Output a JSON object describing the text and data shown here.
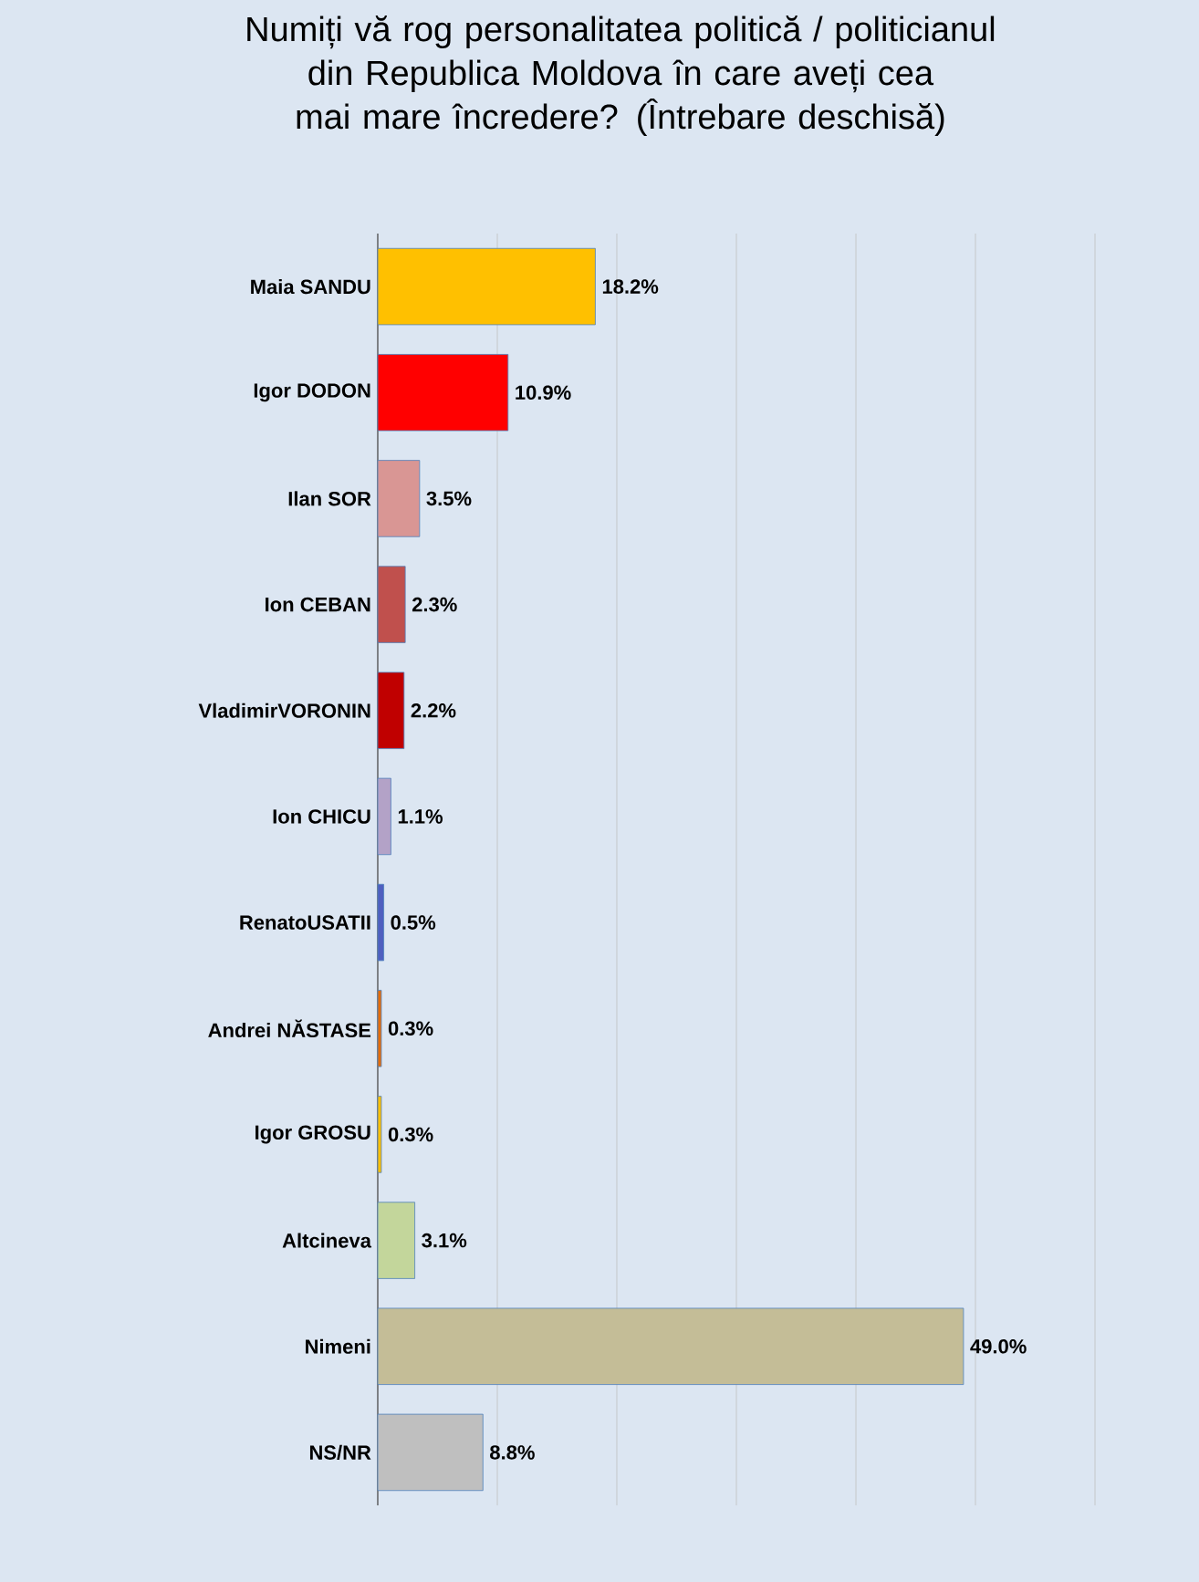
{
  "chart_data": {
    "type": "bar",
    "orientation": "horizontal",
    "title": "Numiți vă rog personalitatea politică / politicianul din Republica Moldova în care aveți cea mai mare încredere? (Întrebare deschisă)",
    "categories": [
      "Maia SANDU",
      "Igor DODON",
      "Ilan  SOR",
      "Ion CEBAN",
      "VladimirVORONIN",
      "Ion  CHICU",
      "RenatoUSATII",
      "Andrei NĂSTASE",
      "Igor GROSU",
      "Altcineva",
      "Nimeni",
      "NS/NR"
    ],
    "values": [
      18.2,
      10.9,
      3.5,
      2.3,
      2.2,
      1.1,
      0.5,
      0.3,
      0.3,
      3.1,
      49.0,
      8.8
    ],
    "value_labels": [
      "18.2%",
      "10.9%",
      "3.5%",
      "2.3%",
      "2.2%",
      "1.1%",
      "0.5%",
      "0.3%",
      "0.3%",
      "3.1%",
      "49.0%",
      "8.8%"
    ],
    "colors": [
      "#ffc000",
      "#ff0000",
      "#d99694",
      "#c0504d",
      "#c00000",
      "#b3a2c7",
      "#4f5fbf",
      "#e46c0a",
      "#ffc000",
      "#c3d69b",
      "#c4bd97",
      "#bfbfbf"
    ],
    "xlim": [
      0,
      60
    ],
    "xticks": [
      {
        "value": 0,
        "label": null
      },
      {
        "value": 10,
        "label": null
      },
      {
        "value": 20,
        "label": null
      },
      {
        "value": 30,
        "label": null
      },
      {
        "value": 40,
        "label": null
      },
      {
        "value": 50,
        "label": null
      },
      {
        "value": 60,
        "label": null
      }
    ],
    "grid": "x"
  }
}
